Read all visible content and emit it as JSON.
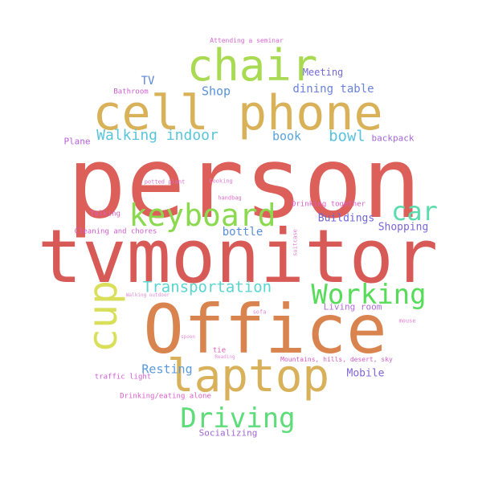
{
  "words": [
    {
      "text": "person",
      "color": "#dd5f5a"
    },
    {
      "text": "tvmonitor",
      "color": "#d85a56"
    },
    {
      "text": "Office",
      "color": "#d9844f"
    },
    {
      "text": "cell phone",
      "color": "#d9b158"
    },
    {
      "text": "chair",
      "color": "#a8db52"
    },
    {
      "text": "laptop",
      "color": "#d8b15a"
    },
    {
      "text": "keyboard",
      "color": "#8bd94e"
    },
    {
      "text": "cup",
      "color": "#d9df58"
    },
    {
      "text": "Working",
      "color": "#57dc5a"
    },
    {
      "text": "Driving",
      "color": "#5edc79"
    },
    {
      "text": "car",
      "color": "#5adcac"
    },
    {
      "text": "Transportation",
      "color": "#5ad5cf"
    },
    {
      "text": "Walking indoor",
      "color": "#5ac5d8"
    },
    {
      "text": "bowl",
      "color": "#5ac2dd"
    },
    {
      "text": "book",
      "color": "#5aa4dc"
    },
    {
      "text": "Shop",
      "color": "#5a92dd"
    },
    {
      "text": "dining table",
      "color": "#6a82db"
    },
    {
      "text": "TV",
      "color": "#5a86da"
    },
    {
      "text": "Meeting",
      "color": "#7569d8"
    },
    {
      "text": "Buildings",
      "color": "#7065d5"
    },
    {
      "text": "bottle",
      "color": "#5a8edb"
    },
    {
      "text": "Shopping",
      "color": "#7a65d9"
    },
    {
      "text": "Resting",
      "color": "#5a9adb"
    },
    {
      "text": "Mobile",
      "color": "#8065d6"
    },
    {
      "text": "Living room",
      "color": "#b06ad9"
    },
    {
      "text": "Socializing",
      "color": "#a265d5"
    },
    {
      "text": "Plane",
      "color": "#b65fd4"
    },
    {
      "text": "backpack",
      "color": "#a468d3"
    },
    {
      "text": "Bathroom",
      "color": "#cc5ed0"
    },
    {
      "text": "Attending a seminar",
      "color": "#d86ad2"
    },
    {
      "text": "Drinking/eating alone",
      "color": "#d860c8"
    },
    {
      "text": "traffic light",
      "color": "#cf5fd3"
    },
    {
      "text": "tie",
      "color": "#d55dbd"
    },
    {
      "text": "Drinking together",
      "color": "#d85ec7"
    },
    {
      "text": "Mountains, hills, desert, sky",
      "color": "#d25cc7"
    },
    {
      "text": "Talking",
      "color": "#d860bd"
    },
    {
      "text": "Cleaning and chores",
      "color": "#cf5ed0"
    },
    {
      "text": "potted plant",
      "color": "#dd6fcc"
    },
    {
      "text": "Cooking",
      "color": "#e27fd2"
    },
    {
      "text": "handbag",
      "color": "#df6fca"
    },
    {
      "text": "suitcase",
      "color": "#e07acf"
    },
    {
      "text": "sofa",
      "color": "#e082d3"
    },
    {
      "text": "mouse",
      "color": "#e17cd0"
    },
    {
      "text": "Walking outdoor",
      "color": "#e38bd8"
    },
    {
      "text": "spoon",
      "color": "#e48ad6"
    },
    {
      "text": "Reading",
      "color": "#e48ed8"
    }
  ]
}
